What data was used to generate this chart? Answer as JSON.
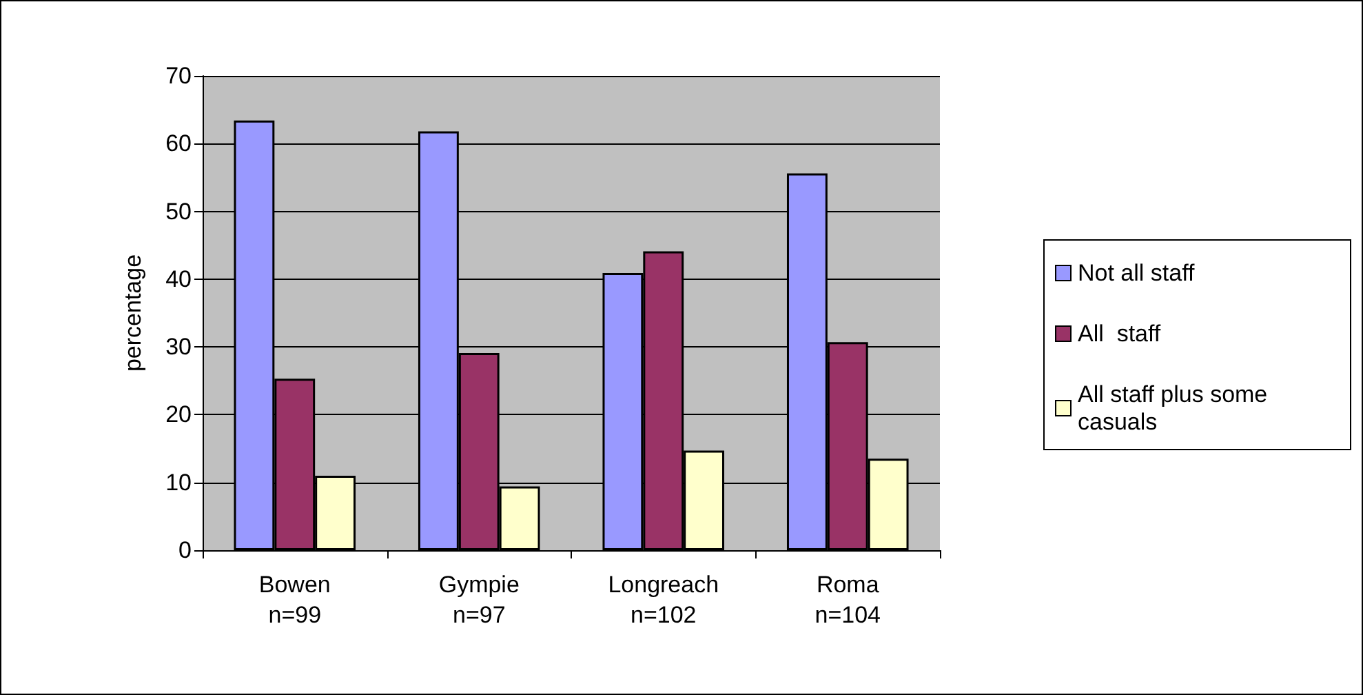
{
  "chart_data": {
    "type": "bar",
    "ylabel": "percentage",
    "categories": [
      "Bowen\nn=99",
      "Gympie\nn=97",
      "Longreach\nn=102",
      "Roma\nn=104"
    ],
    "series": [
      {
        "name": "Not all staff",
        "color": "#9999ff",
        "values": [
          63.4,
          61.8,
          40.9,
          55.6
        ]
      },
      {
        "name": "All  staff",
        "color": "#993366",
        "values": [
          25.3,
          29.1,
          44.1,
          30.7
        ]
      },
      {
        "name": "All staff plus some casuals",
        "color": "#ffffcc",
        "values": [
          11.0,
          9.4,
          14.7,
          13.5
        ]
      }
    ],
    "ylim": [
      0,
      70
    ],
    "yticks": [
      0,
      10,
      20,
      30,
      40,
      50,
      60,
      70
    ],
    "grid": "y",
    "legend": "right"
  }
}
